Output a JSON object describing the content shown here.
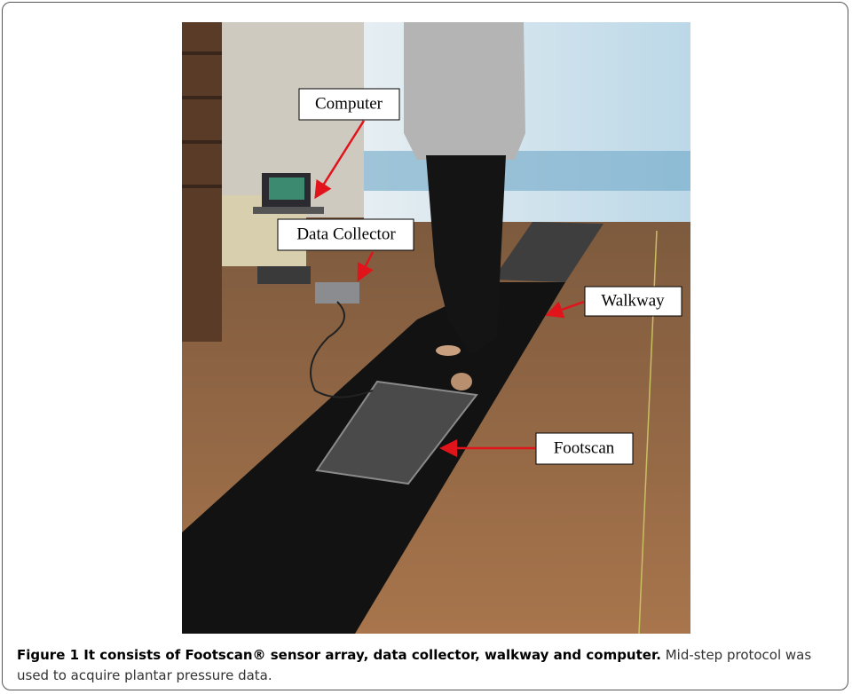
{
  "figure": {
    "labels": [
      "Computer",
      "Data Collector",
      "Walkway",
      "Footscan"
    ],
    "caption": {
      "title": "Figure 1 It consists of Footscan® sensor array, data collector, walkway and computer.",
      "text": "Mid-step protocol was used to acquire plantar pressure data."
    }
  }
}
